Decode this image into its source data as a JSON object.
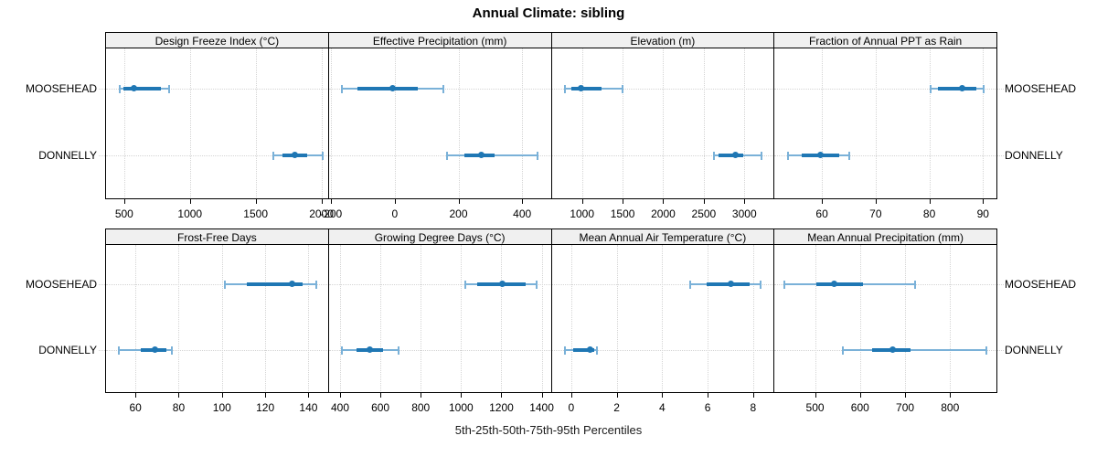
{
  "chart_data": {
    "type": "dotplot-percentiles",
    "title": "Annual Climate: sibling",
    "caption": "5th-25th-50th-75th-95th Percentiles",
    "categories": [
      "MOOSEHEAD",
      "DONNELLY"
    ],
    "percentile_labels": [
      "5th",
      "25th",
      "50th",
      "75th",
      "95th"
    ],
    "legend_position": "none",
    "grid": "dotted",
    "colors": {
      "accent_main": "#1f77b4",
      "accent_light": "#7ab1d8",
      "header_bg": "#f0f0f0",
      "grid": "#d4d4d4",
      "border": "#000000"
    },
    "panels": [
      {
        "title": "Design Freeze Index (°C)",
        "ticks": [
          500,
          1000,
          1500,
          2000
        ],
        "xlim": [
          355,
          2050
        ],
        "series": [
          {
            "name": "MOOSEHEAD",
            "p": [
              460,
              485,
              565,
              775,
              835
            ]
          },
          {
            "name": "DONNELLY",
            "p": [
              1630,
              1700,
              1790,
              1885,
              2000
            ]
          }
        ]
      },
      {
        "title": "Effective Precipitation (mm)",
        "ticks": [
          -200,
          0,
          200,
          400
        ],
        "xlim": [
          -210,
          490
        ],
        "series": [
          {
            "name": "MOOSEHEAD",
            "p": [
              -170,
              -120,
              -10,
              70,
              150
            ]
          },
          {
            "name": "DONNELLY",
            "p": [
              160,
              215,
              270,
              310,
              445
            ]
          }
        ]
      },
      {
        "title": "Elevation (m)",
        "ticks": [
          1000,
          1500,
          2000,
          2500,
          3000
        ],
        "xlim": [
          615,
          3360
        ],
        "series": [
          {
            "name": "MOOSEHEAD",
            "p": [
              775,
              855,
              975,
              1225,
              1490
            ]
          },
          {
            "name": "DONNELLY",
            "p": [
              2615,
              2670,
              2875,
              2970,
              3195
            ]
          }
        ]
      },
      {
        "title": "Fraction of Annual PPT as Rain",
        "ticks": [
          60,
          70,
          80,
          90
        ],
        "xlim": [
          51,
          92.5
        ],
        "series": [
          {
            "name": "MOOSEHEAD",
            "p": [
              80,
              81.5,
              86,
              88.5,
              90
            ]
          },
          {
            "name": "DONNELLY",
            "p": [
              53.5,
              56,
              59.5,
              63,
              65
            ]
          }
        ]
      },
      {
        "title": "Frost-Free Days",
        "ticks": [
          60,
          80,
          100,
          120,
          140
        ],
        "xlim": [
          46,
          149
        ],
        "series": [
          {
            "name": "MOOSEHEAD",
            "p": [
              101,
              111,
              132,
              137,
              143
            ]
          },
          {
            "name": "DONNELLY",
            "p": [
              52,
              62,
              68.5,
              74,
              76.5
            ]
          }
        ]
      },
      {
        "title": "Growing Degree Days (°C)",
        "ticks": [
          400,
          600,
          800,
          1000,
          1200,
          1400
        ],
        "xlim": [
          340,
          1445
        ],
        "series": [
          {
            "name": "MOOSEHEAD",
            "p": [
              1015,
              1075,
              1200,
              1315,
              1370
            ]
          },
          {
            "name": "DONNELLY",
            "p": [
              405,
              475,
              545,
              610,
              685
            ]
          }
        ]
      },
      {
        "title": "Mean Annual Air Temperature (°C)",
        "ticks": [
          0,
          2,
          4,
          6,
          8
        ],
        "xlim": [
          -0.9,
          8.9
        ],
        "series": [
          {
            "name": "MOOSEHEAD",
            "p": [
              5.2,
              5.9,
              7.0,
              7.8,
              8.3
            ]
          },
          {
            "name": "DONNELLY",
            "p": [
              -0.3,
              0.05,
              0.8,
              0.95,
              1.1
            ]
          }
        ]
      },
      {
        "title": "Mean Annual Precipitation (mm)",
        "ticks": [
          500,
          600,
          700,
          800
        ],
        "xlim": [
          408,
          903
        ],
        "series": [
          {
            "name": "MOOSEHEAD",
            "p": [
              430,
              500,
              540,
              605,
              720
            ]
          },
          {
            "name": "DONNELLY",
            "p": [
              560,
              625,
              670,
              710,
              878
            ]
          }
        ]
      }
    ]
  }
}
